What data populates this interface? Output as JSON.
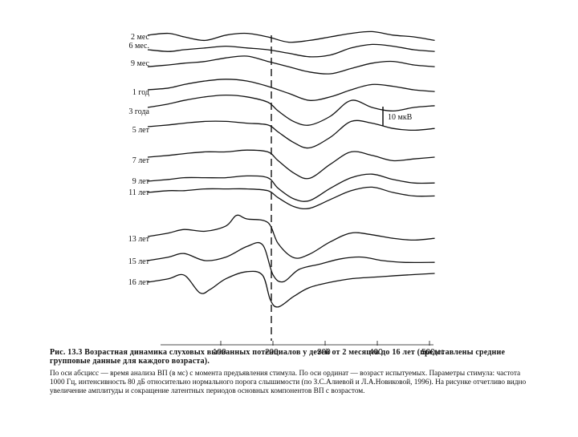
{
  "figure": {
    "row_labels": [
      "2 мес",
      "6 мес.",
      "9 мес",
      "1 год",
      "3 года",
      "5 лет",
      "7 лет",
      "9 лет",
      "11 лет",
      "13 лет",
      "15 лет",
      "16 лет"
    ],
    "scale_label": "10 мкВ",
    "x_ticks": [
      "100",
      "200",
      "300",
      "400",
      "500мс"
    ],
    "caption_title": "Рис. 13.3 Возрастная динамика слуховых вызванных потенциалов у детей от 2 месяцев до 16 лет (представлены средние групповые данные для каждого возраста).",
    "caption_body": "По оси абсцисс — время анализа ВП (в мс) с момента предъявления стимула. По оси ординат — возраст испытуемых. Параметры стимула: частота 1000 Гц, интенсивность 80 дБ относительно нормального порога слышимости (по З.С.Алиевой и Л.А.Новиковой, 1996). На рисунке отчетливо видно увеличение амплитуды и сокращение латентных периодов основных компонентов ВП с возрастом."
  },
  "chart_data": {
    "type": "line",
    "title": "",
    "xlabel": "",
    "ylabel": "",
    "x_ticks": [
      100,
      200,
      300,
      400,
      500
    ],
    "x_unit": "мс",
    "scale_bar": "10 мкВ",
    "xlim": [
      0,
      530
    ],
    "marker_line_x": 200,
    "series": [
      {
        "name": "2 мес",
        "x": [
          -40,
          0,
          30,
          70,
          110,
          150,
          190,
          230,
          270,
          310,
          350,
          390,
          430,
          470,
          510
        ],
        "y": [
          1,
          2,
          0,
          -2,
          1,
          2,
          0,
          -3,
          -2,
          0,
          2,
          3,
          1,
          0,
          -2
        ]
      },
      {
        "name": "6 мес.",
        "x": [
          -40,
          0,
          30,
          70,
          110,
          150,
          190,
          230,
          270,
          310,
          350,
          390,
          430,
          470,
          510
        ],
        "y": [
          0,
          -1,
          0,
          1,
          2,
          1,
          0,
          -2,
          -4,
          -3,
          1,
          3,
          2,
          0,
          -1
        ]
      },
      {
        "name": "9 мес",
        "x": [
          -40,
          0,
          30,
          70,
          110,
          150,
          190,
          230,
          270,
          310,
          350,
          390,
          430,
          470,
          510
        ],
        "y": [
          -1,
          0,
          1,
          2,
          4,
          5,
          2,
          -1,
          -4,
          -5,
          -2,
          1,
          2,
          0,
          -1
        ]
      },
      {
        "name": "1 год",
        "x": [
          -40,
          0,
          30,
          70,
          110,
          150,
          190,
          230,
          270,
          310,
          350,
          390,
          430,
          470,
          510
        ],
        "y": [
          0,
          1,
          3,
          5,
          6,
          5,
          2,
          -2,
          -6,
          -4,
          0,
          3,
          2,
          0,
          -1
        ]
      },
      {
        "name": "3 года",
        "x": [
          -40,
          0,
          30,
          70,
          110,
          150,
          190,
          210,
          240,
          270,
          310,
          350,
          390,
          430,
          470,
          510
        ],
        "y": [
          0,
          2,
          4,
          6,
          7,
          6,
          3,
          -2,
          -8,
          -10,
          -5,
          4,
          0,
          -2,
          0,
          1
        ]
      },
      {
        "name": "5 лет",
        "x": [
          -40,
          0,
          30,
          70,
          110,
          150,
          190,
          210,
          240,
          270,
          310,
          350,
          390,
          430,
          470,
          510
        ],
        "y": [
          0,
          1,
          2,
          3,
          3,
          2,
          1,
          -3,
          -9,
          -12,
          -6,
          3,
          2,
          -1,
          -2,
          -1
        ]
      },
      {
        "name": "7 лет",
        "x": [
          -40,
          0,
          30,
          70,
          110,
          150,
          190,
          210,
          240,
          270,
          310,
          350,
          390,
          430,
          470,
          510
        ],
        "y": [
          0,
          1,
          2,
          3,
          3,
          4,
          3,
          -2,
          -9,
          -12,
          -4,
          3,
          1,
          -2,
          -1,
          0
        ]
      },
      {
        "name": "9 лет",
        "x": [
          -40,
          0,
          30,
          70,
          110,
          150,
          190,
          210,
          240,
          270,
          310,
          350,
          390,
          430,
          470,
          510
        ],
        "y": [
          0,
          1,
          2,
          2,
          2,
          3,
          2,
          -4,
          -10,
          -11,
          -4,
          2,
          4,
          1,
          -1,
          -1
        ]
      },
      {
        "name": "11 лет",
        "x": [
          -40,
          0,
          30,
          70,
          110,
          150,
          190,
          210,
          240,
          270,
          310,
          350,
          390,
          430,
          470,
          510
        ],
        "y": [
          0,
          1,
          1,
          2,
          2,
          2,
          1,
          -3,
          -8,
          -9,
          -4,
          1,
          3,
          0,
          -2,
          -2
        ]
      },
      {
        "name": "13 лет",
        "x": [
          -40,
          0,
          30,
          70,
          110,
          130,
          150,
          190,
          210,
          240,
          270,
          310,
          350,
          390,
          430,
          470,
          510
        ],
        "y": [
          0,
          2,
          4,
          3,
          6,
          12,
          10,
          8,
          -4,
          -12,
          -10,
          -3,
          2,
          1,
          -1,
          -2,
          -1
        ]
      },
      {
        "name": "15 лет",
        "x": [
          -40,
          0,
          30,
          70,
          110,
          150,
          180,
          200,
          220,
          250,
          290,
          330,
          370,
          410,
          450,
          510
        ],
        "y": [
          0,
          2,
          4,
          0,
          2,
          8,
          9,
          -8,
          -12,
          -5,
          -2,
          1,
          2,
          0,
          -1,
          -1
        ]
      },
      {
        "name": "16 лет",
        "x": [
          -40,
          0,
          30,
          60,
          80,
          110,
          150,
          180,
          195,
          210,
          240,
          270,
          310,
          350,
          400,
          450,
          510
        ],
        "y": [
          0,
          2,
          4,
          -6,
          -4,
          2,
          6,
          4,
          -10,
          -14,
          -8,
          -3,
          0,
          2,
          3,
          4,
          5
        ]
      }
    ]
  }
}
